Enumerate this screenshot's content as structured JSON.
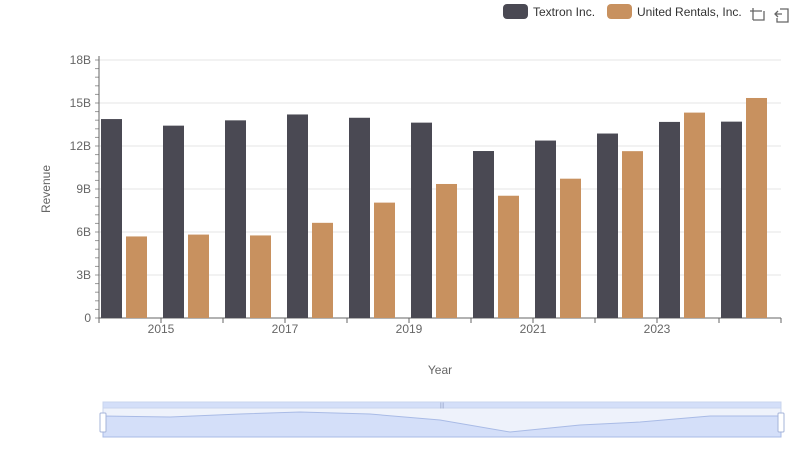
{
  "chart_data": {
    "type": "bar",
    "xlabel": "Year",
    "ylabel": "Revenue",
    "ylim": [
      0,
      18000000000
    ],
    "yticks": [
      "0",
      "3B",
      "6B",
      "9B",
      "12B",
      "15B",
      "18B"
    ],
    "x_tick_labels": [
      "2015",
      "2017",
      "2019",
      "2021",
      "2023"
    ],
    "categories": [
      "2014",
      "2015",
      "2016",
      "2017",
      "2018",
      "2019",
      "2020",
      "2021",
      "2022",
      "2023",
      "2024"
    ],
    "series": [
      {
        "name": "Textron Inc.",
        "color": "#4a4953",
        "values": [
          13880000000,
          13420000000,
          13790000000,
          14200000000,
          13970000000,
          13630000000,
          11650000000,
          12380000000,
          12870000000,
          13680000000,
          13700000000
        ]
      },
      {
        "name": "United Rentals, Inc.",
        "color": "#c8915f",
        "values": [
          5690000000,
          5820000000,
          5760000000,
          6640000000,
          8050000000,
          9350000000,
          8530000000,
          9720000000,
          11640000000,
          14330000000,
          15350000000
        ]
      }
    ],
    "legend_position": "top-right",
    "grid": true
  },
  "toolbar": {
    "zoom_icon": "zoom-area-icon",
    "restore_icon": "restore-icon"
  },
  "data_zoom": {
    "range": [
      0,
      1
    ]
  }
}
